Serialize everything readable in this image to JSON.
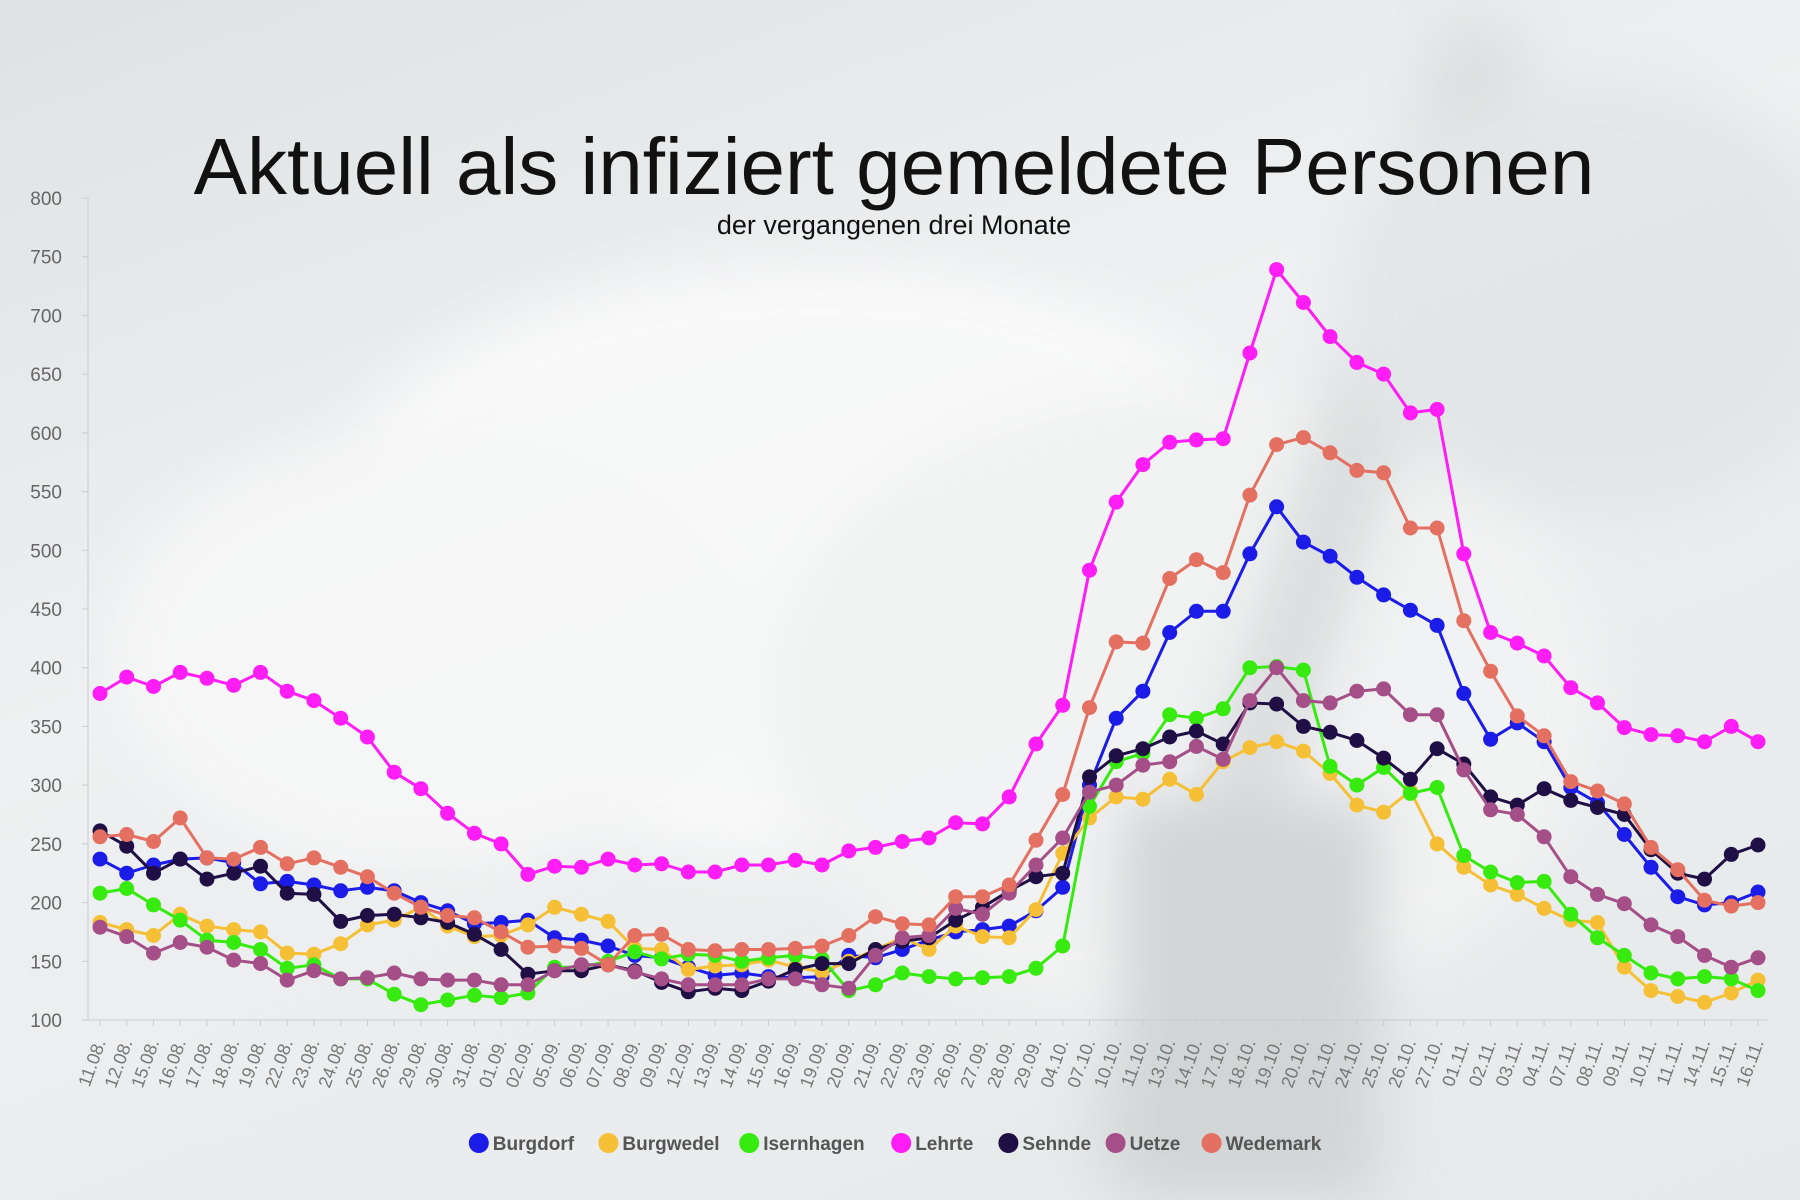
{
  "chart_data": {
    "type": "line",
    "title": "Aktuell als infiziert gemeldete Personen",
    "subtitle": "der vergangenen drei Monate",
    "xlabel": "",
    "ylabel": "",
    "ylim": [
      100,
      800
    ],
    "yticks": [
      100,
      150,
      200,
      250,
      300,
      350,
      400,
      450,
      500,
      550,
      600,
      650,
      700,
      750,
      800
    ],
    "grid": false,
    "legend_position": "bottom",
    "categories": [
      "11.08.",
      "12.08.",
      "15.08.",
      "16.08.",
      "17.08.",
      "18.08.",
      "19.08.",
      "22.08.",
      "23.08.",
      "24.08.",
      "25.08.",
      "26.08.",
      "29.08.",
      "30.08.",
      "31.08.",
      "01.09.",
      "02.09.",
      "05.09.",
      "06.09.",
      "07.09.",
      "08.09.",
      "09.09.",
      "12.09.",
      "13.09.",
      "14.09.",
      "15.09.",
      "16.09.",
      "19.09.",
      "20.09.",
      "21.09.",
      "22.09.",
      "23.09.",
      "26.09.",
      "27.09.",
      "28.09.",
      "29.09.",
      "04.10.",
      "07.10.",
      "10.10.",
      "11.10.",
      "13.10.",
      "14.10.",
      "17.10.",
      "18.10.",
      "19.10.",
      "20.10.",
      "21.10.",
      "24.10.",
      "25.10.",
      "26.10.",
      "27.10.",
      "01.11.",
      "02.11.",
      "03.11.",
      "04.11.",
      "07.11.",
      "08.11.",
      "09.11.",
      "10.11.",
      "11.11.",
      "14.11.",
      "15.11.",
      "16.11."
    ],
    "series": [
      {
        "name": "Burgdorf",
        "color": "#1c1ce8",
        "values": [
          237,
          225,
          232,
          237,
          238,
          234,
          216,
          218,
          215,
          210,
          213,
          210,
          200,
          193,
          182,
          183,
          185,
          170,
          168,
          163,
          155,
          153,
          145,
          138,
          140,
          137,
          136,
          137,
          155,
          153,
          160,
          168,
          175,
          177,
          180,
          193,
          213,
          300,
          357,
          380,
          430,
          448,
          448,
          497,
          537,
          507,
          495,
          477,
          462,
          449,
          436,
          378,
          339,
          353,
          337,
          298,
          285,
          258,
          230,
          205,
          198,
          200,
          209
        ]
      },
      {
        "name": "Burgwedel",
        "color": "#f5c035",
        "values": [
          183,
          177,
          172,
          190,
          180,
          177,
          175,
          157,
          156,
          165,
          181,
          185,
          196,
          180,
          171,
          172,
          181,
          196,
          190,
          184,
          161,
          160,
          143,
          146,
          147,
          151,
          145,
          141,
          150,
          160,
          170,
          160,
          180,
          171,
          170,
          194,
          242,
          272,
          290,
          288,
          305,
          292,
          320,
          332,
          337,
          329,
          310,
          283,
          277,
          295,
          250,
          230,
          215,
          207,
          195,
          185,
          183,
          145,
          125,
          120,
          115,
          123,
          134
        ]
      },
      {
        "name": "Isernhagen",
        "color": "#37ea10",
        "values": [
          208,
          212,
          198,
          185,
          168,
          166,
          160,
          144,
          147,
          135,
          135,
          122,
          113,
          117,
          121,
          119,
          123,
          145,
          145,
          150,
          158,
          152,
          156,
          155,
          150,
          153,
          155,
          152,
          125,
          130,
          140,
          137,
          135,
          136,
          137,
          144,
          163,
          282,
          320,
          327,
          360,
          357,
          365,
          400,
          401,
          398,
          316,
          300,
          315,
          293,
          298,
          240,
          226,
          217,
          218,
          190,
          170,
          155,
          140,
          135,
          137,
          135,
          125
        ]
      },
      {
        "name": "Lehrte",
        "color": "#ff1df6",
        "values": [
          378,
          392,
          384,
          396,
          391,
          385,
          396,
          380,
          372,
          357,
          341,
          311,
          297,
          276,
          259,
          250,
          224,
          231,
          230,
          237,
          232,
          233,
          226,
          226,
          232,
          232,
          236,
          232,
          244,
          247,
          252,
          255,
          268,
          267,
          290,
          335,
          368,
          483,
          541,
          573,
          592,
          594,
          595,
          668,
          739,
          711,
          682,
          660,
          650,
          617,
          620,
          497,
          430,
          421,
          410,
          383,
          370,
          349,
          343,
          342,
          337,
          350,
          337
        ]
      },
      {
        "name": "Sehnde",
        "color": "#1f0f45",
        "values": [
          261,
          248,
          225,
          237,
          220,
          225,
          231,
          208,
          207,
          184,
          189,
          190,
          187,
          183,
          173,
          160,
          139,
          142,
          142,
          147,
          142,
          132,
          124,
          127,
          125,
          133,
          143,
          148,
          148,
          160,
          167,
          170,
          185,
          196,
          210,
          222,
          225,
          307,
          325,
          331,
          341,
          346,
          335,
          370,
          369,
          350,
          345,
          338,
          323,
          305,
          331,
          318,
          290,
          283,
          297,
          287,
          281,
          275,
          245,
          225,
          220,
          241,
          249
        ]
      },
      {
        "name": "Uetze",
        "color": "#a44f87",
        "values": [
          179,
          171,
          157,
          166,
          162,
          151,
          148,
          134,
          142,
          135,
          136,
          140,
          135,
          134,
          134,
          130,
          130,
          142,
          147,
          147,
          141,
          135,
          130,
          130,
          130,
          135,
          135,
          130,
          127,
          155,
          170,
          172,
          195,
          190,
          208,
          232,
          255,
          294,
          300,
          317,
          320,
          333,
          322,
          372,
          400,
          372,
          370,
          380,
          382,
          360,
          360,
          313,
          279,
          275,
          256,
          222,
          207,
          199,
          181,
          171,
          155,
          145,
          153
        ]
      },
      {
        "name": "Wedemark",
        "color": "#e47061",
        "values": [
          256,
          258,
          252,
          272,
          238,
          237,
          247,
          233,
          238,
          230,
          222,
          208,
          196,
          189,
          187,
          175,
          162,
          163,
          161,
          147,
          172,
          173,
          160,
          159,
          160,
          160,
          161,
          163,
          172,
          188,
          182,
          181,
          205,
          205,
          215,
          253,
          292,
          366,
          422,
          421,
          476,
          492,
          481,
          547,
          590,
          596,
          583,
          568,
          566,
          519,
          519,
          440,
          397,
          359,
          342,
          303,
          295,
          284,
          247,
          228,
          202,
          197,
          200
        ]
      }
    ]
  }
}
